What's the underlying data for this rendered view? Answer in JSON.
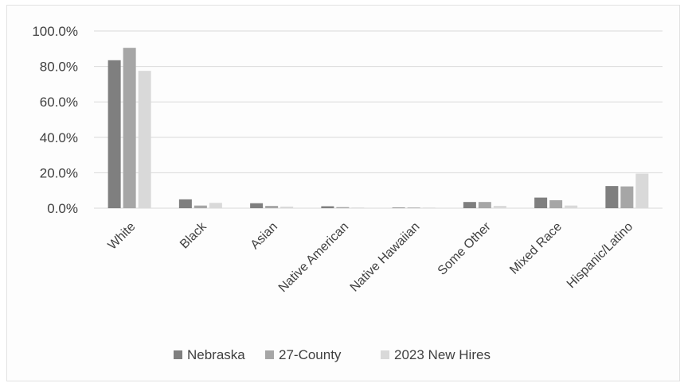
{
  "chart_data": {
    "type": "bar",
    "title": "",
    "xlabel": "",
    "ylabel": "",
    "ylim": [
      0,
      100
    ],
    "y_ticks": [
      0,
      20,
      40,
      60,
      80,
      100
    ],
    "y_tick_labels": [
      "0.0%",
      "20.0%",
      "40.0%",
      "60.0%",
      "80.0%",
      "100.0%"
    ],
    "grid": true,
    "legend_position": "bottom",
    "categories": [
      "White",
      "Black",
      "Asian",
      "Native American",
      "Native Hawaiian",
      "Some Other",
      "Mixed Race",
      "Hispanic/Latino"
    ],
    "series": [
      {
        "name": "Nebraska",
        "color": "#7f7f7f",
        "values": [
          83.5,
          5.0,
          2.8,
          1.1,
          0.1,
          3.5,
          6.0,
          12.5
        ]
      },
      {
        "name": "27-County",
        "color": "#a6a6a6",
        "values": [
          90.5,
          1.5,
          1.3,
          0.6,
          0.1,
          3.5,
          4.5,
          12.3
        ]
      },
      {
        "name": "2023 New Hires",
        "color": "#d9d9d9",
        "values": [
          77.5,
          3.0,
          0.9,
          0.4,
          0.2,
          1.3,
          1.5,
          19.5
        ]
      }
    ]
  }
}
